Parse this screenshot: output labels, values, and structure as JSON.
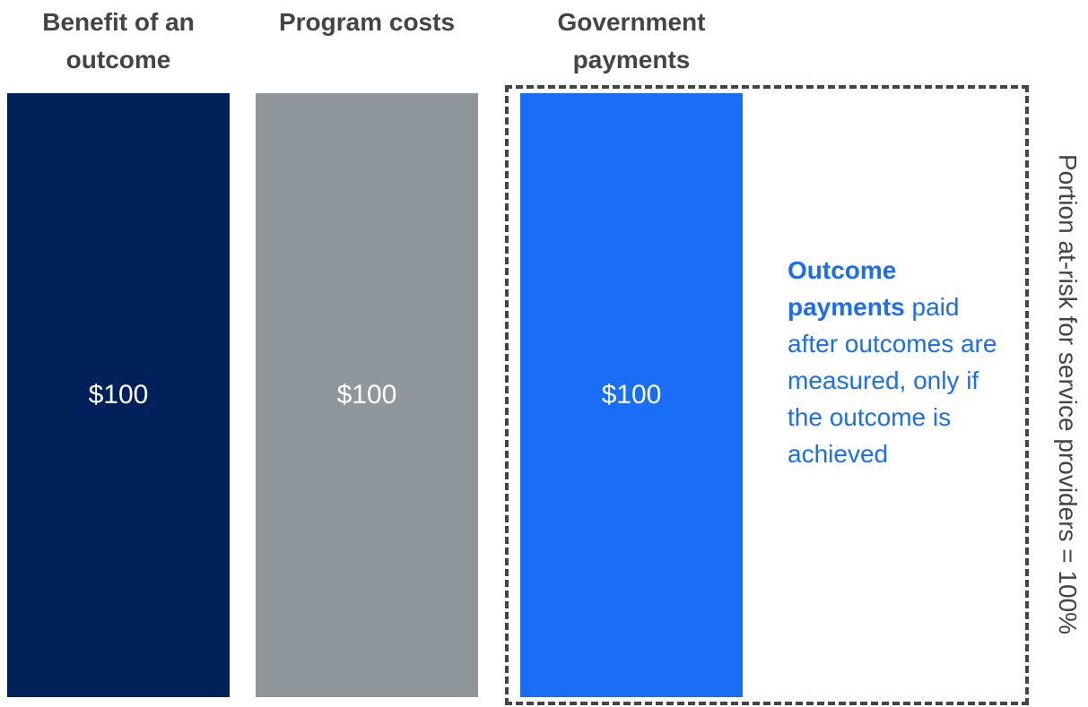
{
  "chart_data": {
    "type": "bar",
    "categories": [
      "Benefit of an outcome",
      "Program costs",
      "Government payments"
    ],
    "values": [
      100,
      100,
      100
    ],
    "value_labels": [
      "$100",
      "$100",
      "$100"
    ],
    "colors": [
      "#00215a",
      "#8f969c",
      "#1a6ef5"
    ],
    "annotations": [
      "Outcome payments",
      "paid after outcomes are measured, only if the outcome is achieved",
      "Portion at-risk for service providers = 100%"
    ]
  }
}
